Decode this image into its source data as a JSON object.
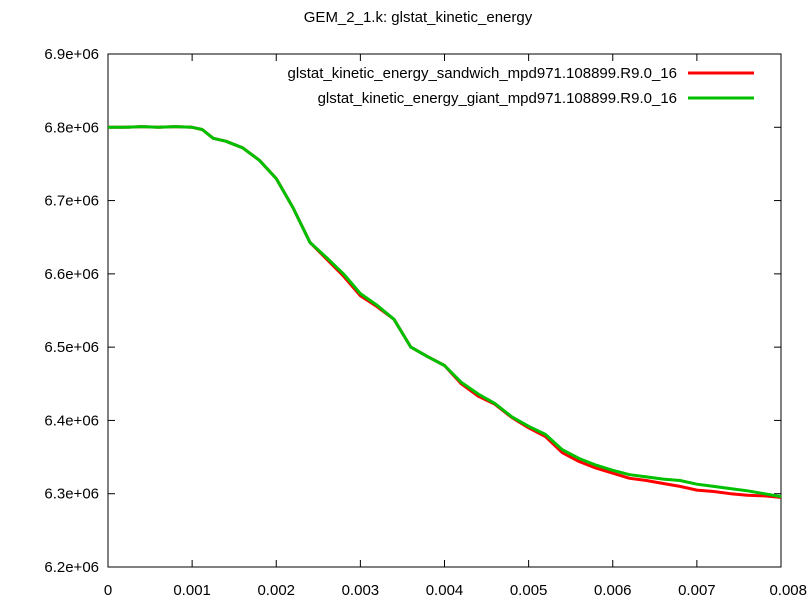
{
  "chart_data": {
    "type": "line",
    "title": "GEM_2_1.k: glstat_kinetic_energy",
    "xlabel": "",
    "ylabel": "",
    "xlim": [
      0,
      0.008
    ],
    "ylim": [
      6200000,
      6900000
    ],
    "x_ticks": [
      "0",
      "0.001",
      "0.002",
      "0.003",
      "0.004",
      "0.005",
      "0.006",
      "0.007",
      "0.008"
    ],
    "x_tick_values": [
      0,
      0.001,
      0.002,
      0.003,
      0.004,
      0.005,
      0.006,
      0.007,
      0.008
    ],
    "y_ticks": [
      "6.2e+06",
      "6.3e+06",
      "6.4e+06",
      "6.5e+06",
      "6.6e+06",
      "6.7e+06",
      "6.8e+06",
      "6.9e+06"
    ],
    "y_tick_values": [
      6200000,
      6300000,
      6400000,
      6500000,
      6600000,
      6700000,
      6800000,
      6900000
    ],
    "grid": false,
    "legend_position": "top-right",
    "series": [
      {
        "name": "glstat_kinetic_energy_sandwich_mpd971.108899.R9.0_16",
        "color": "#ff0000",
        "x": [
          0,
          0.0002,
          0.0004,
          0.0006,
          0.0008,
          0.001,
          0.00112,
          0.00125,
          0.0014,
          0.0016,
          0.0018,
          0.002,
          0.0022,
          0.0024,
          0.0026,
          0.0028,
          0.003,
          0.0032,
          0.0034,
          0.0036,
          0.0038,
          0.004,
          0.0042,
          0.0044,
          0.0046,
          0.0048,
          0.005,
          0.0052,
          0.0054,
          0.0056,
          0.0058,
          0.006,
          0.0062,
          0.0064,
          0.0066,
          0.0068,
          0.007,
          0.0072,
          0.0074,
          0.0076,
          0.0078,
          0.008
        ],
        "values": [
          6800000,
          6800000,
          6801000,
          6800000,
          6801000,
          6800000,
          6797000,
          6785000,
          6781000,
          6772000,
          6755000,
          6730000,
          6690000,
          6643000,
          6620000,
          6597000,
          6570000,
          6555000,
          6538000,
          6500000,
          6487000,
          6475000,
          6450000,
          6433000,
          6422000,
          6404000,
          6390000,
          6378000,
          6356000,
          6344000,
          6335000,
          6328000,
          6321000,
          6318000,
          6314000,
          6310000,
          6305000,
          6303000,
          6300000,
          6298000,
          6297000,
          6295000
        ]
      },
      {
        "name": "glstat_kinetic_energy_giant_mpd971.108899.R9.0_16",
        "color": "#00c000",
        "x": [
          0,
          0.0002,
          0.0004,
          0.0006,
          0.0008,
          0.001,
          0.00112,
          0.00125,
          0.0014,
          0.0016,
          0.0018,
          0.002,
          0.0022,
          0.0024,
          0.0026,
          0.0028,
          0.003,
          0.0032,
          0.0034,
          0.0036,
          0.0038,
          0.004,
          0.0042,
          0.0044,
          0.0046,
          0.0048,
          0.005,
          0.0052,
          0.0054,
          0.0056,
          0.0058,
          0.006,
          0.0062,
          0.0064,
          0.0066,
          0.0068,
          0.007,
          0.0072,
          0.0074,
          0.0076,
          0.0078,
          0.008
        ],
        "values": [
          6800000,
          6800000,
          6801000,
          6800000,
          6801000,
          6800000,
          6797000,
          6785000,
          6781000,
          6772000,
          6755000,
          6730000,
          6690000,
          6643000,
          6622000,
          6600000,
          6573000,
          6557000,
          6538000,
          6500000,
          6487000,
          6475000,
          6452000,
          6436000,
          6423000,
          6405000,
          6392000,
          6381000,
          6360000,
          6348000,
          6339000,
          6332000,
          6326000,
          6323000,
          6320000,
          6318000,
          6313000,
          6310000,
          6307000,
          6304000,
          6300000,
          6296000
        ]
      }
    ]
  }
}
